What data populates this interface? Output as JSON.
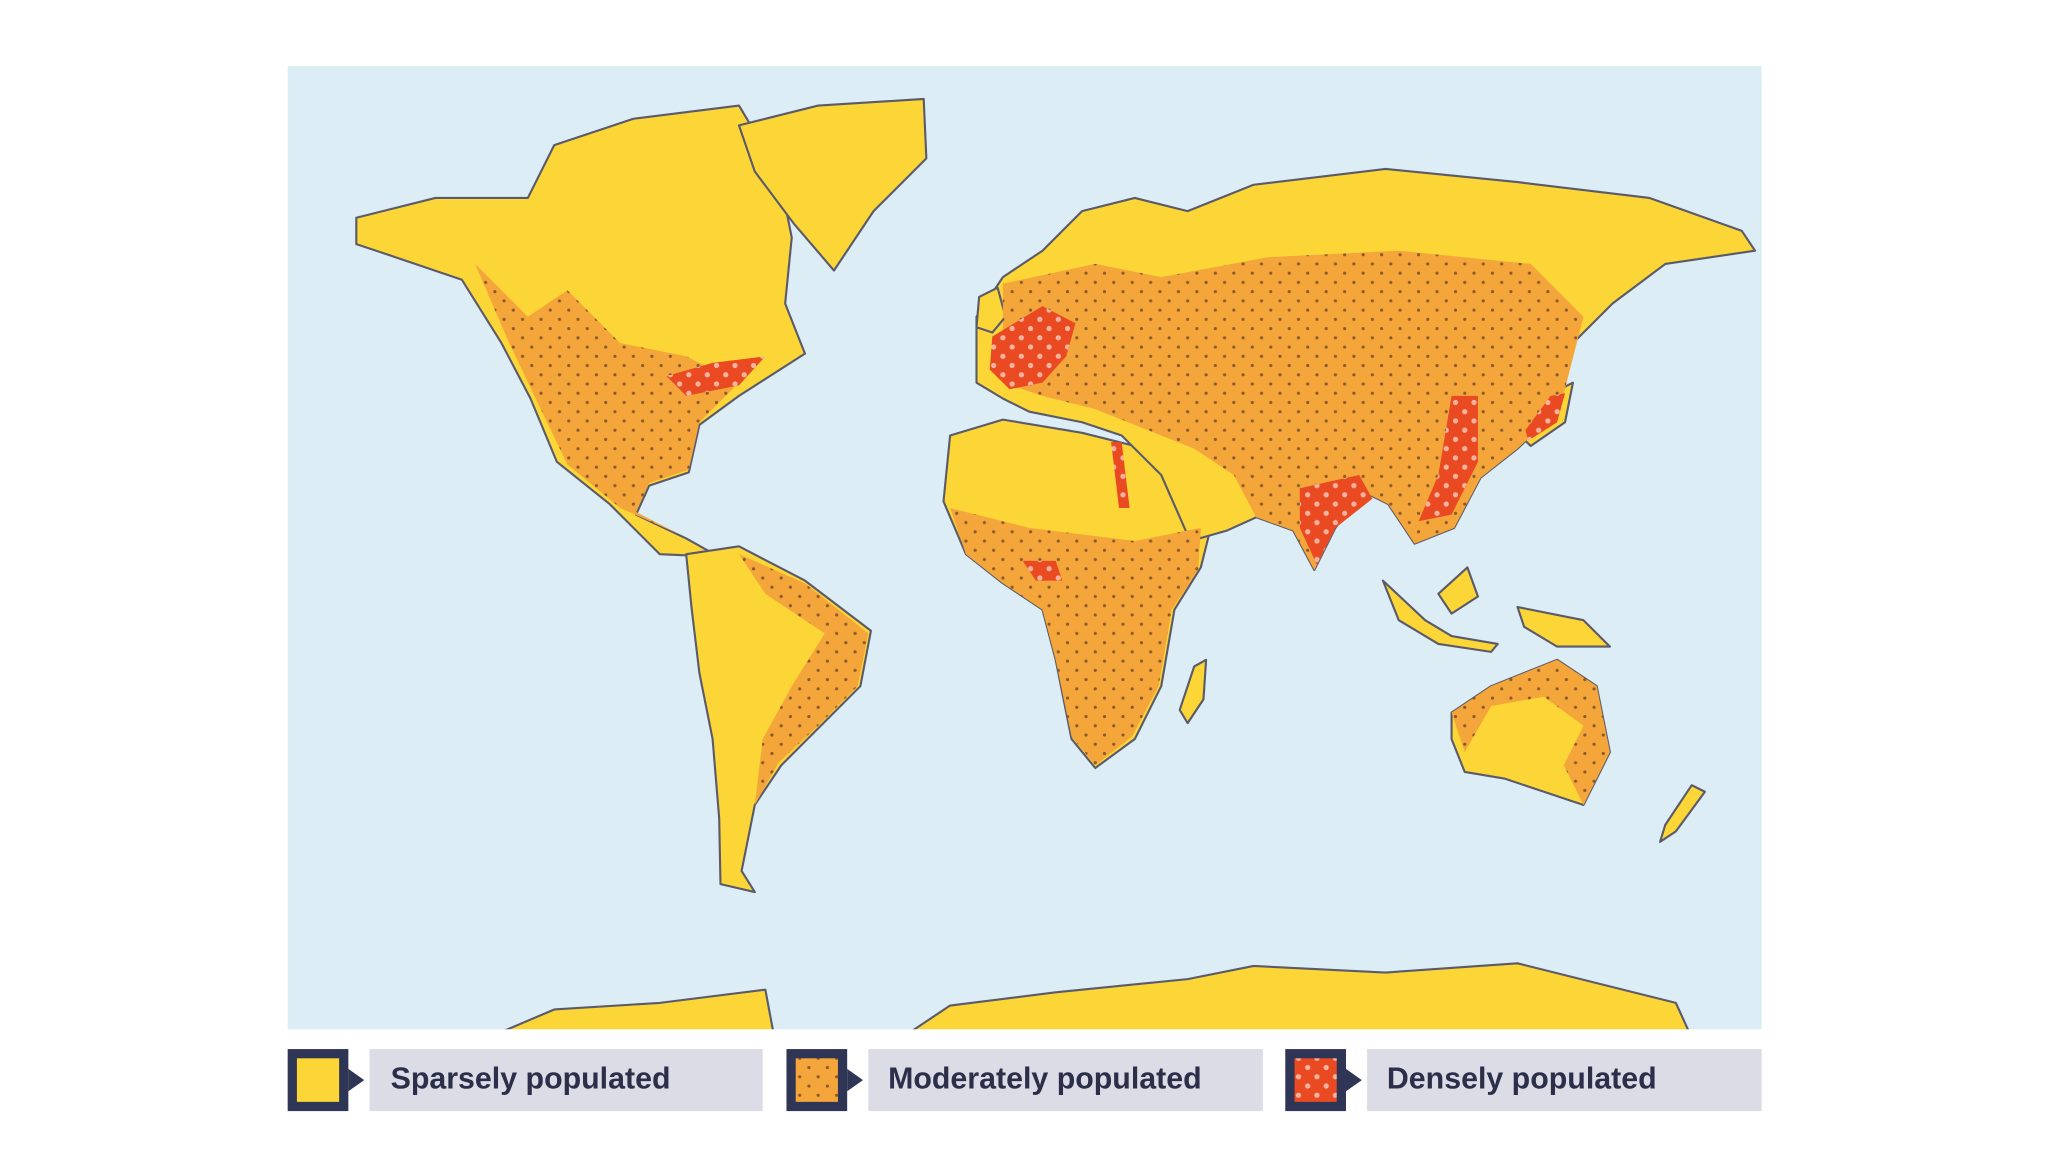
{
  "legend": {
    "items": [
      {
        "label": "Sparsely populated"
      },
      {
        "label": "Moderately populated"
      },
      {
        "label": "Densely populated"
      }
    ]
  }
}
